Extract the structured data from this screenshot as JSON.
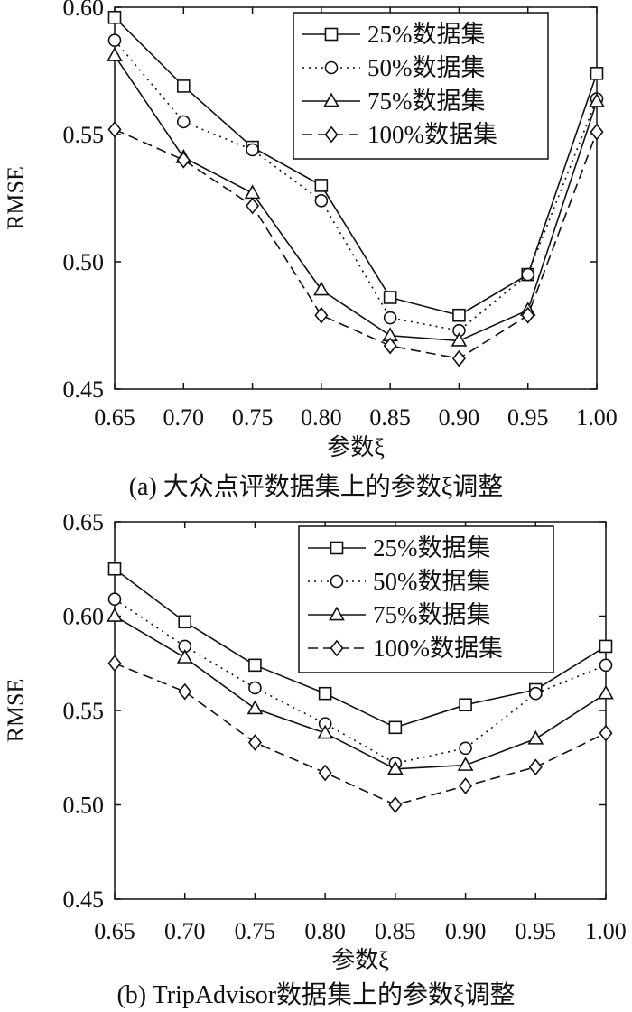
{
  "chart_data": [
    {
      "type": "line",
      "caption": "(a) 大众点评数据集上的参数ξ调整",
      "xlabel": "参数ξ",
      "ylabel": "RMSE",
      "x": [
        0.65,
        0.7,
        0.75,
        0.8,
        0.85,
        0.9,
        0.95,
        1.0
      ],
      "xticks": [
        "0.65",
        "0.70",
        "0.75",
        "0.80",
        "0.85",
        "0.90",
        "0.95",
        "1.00"
      ],
      "xlim": [
        0.65,
        1.0
      ],
      "ylim": [
        0.45,
        0.6
      ],
      "yticks": [
        "0.45",
        "0.50",
        "0.55",
        "0.60"
      ],
      "legend_position": "top-right",
      "grid": false,
      "series": [
        {
          "name": "25%数据集",
          "marker": "square",
          "dash": "solid",
          "values": [
            0.596,
            0.569,
            0.545,
            0.53,
            0.486,
            0.479,
            0.495,
            0.574
          ]
        },
        {
          "name": "50%数据集",
          "marker": "circle",
          "dash": "dotted",
          "values": [
            0.587,
            0.555,
            0.544,
            0.524,
            0.478,
            0.473,
            0.495,
            0.564
          ]
        },
        {
          "name": "75%数据集",
          "marker": "triangle",
          "dash": "solid",
          "values": [
            0.581,
            0.541,
            0.527,
            0.489,
            0.471,
            0.469,
            0.481,
            0.563
          ]
        },
        {
          "name": "100%数据集",
          "marker": "diamond",
          "dash": "dashed",
          "values": [
            0.552,
            0.54,
            0.522,
            0.479,
            0.467,
            0.462,
            0.479,
            0.551
          ]
        }
      ]
    },
    {
      "type": "line",
      "caption": "(b) TripAdvisor数据集上的参数ξ调整",
      "xlabel": "参数ξ",
      "ylabel": "RMSE",
      "x": [
        0.65,
        0.7,
        0.75,
        0.8,
        0.85,
        0.9,
        0.95,
        1.0
      ],
      "xticks": [
        "0.65",
        "0.70",
        "0.75",
        "0.80",
        "0.85",
        "0.90",
        "0.95",
        "1.00"
      ],
      "xlim": [
        0.65,
        1.0
      ],
      "ylim": [
        0.45,
        0.65
      ],
      "yticks": [
        "0.45",
        "0.50",
        "0.55",
        "0.60",
        "0.65"
      ],
      "legend_position": "top-right",
      "grid": false,
      "series": [
        {
          "name": "25%数据集",
          "marker": "square",
          "dash": "solid",
          "values": [
            0.625,
            0.597,
            0.574,
            0.559,
            0.541,
            0.553,
            0.561,
            0.584
          ]
        },
        {
          "name": "50%数据集",
          "marker": "circle",
          "dash": "dotted",
          "values": [
            0.609,
            0.584,
            0.562,
            0.543,
            0.522,
            0.53,
            0.559,
            0.574
          ]
        },
        {
          "name": "75%数据集",
          "marker": "triangle",
          "dash": "solid",
          "values": [
            0.6,
            0.578,
            0.551,
            0.538,
            0.519,
            0.521,
            0.535,
            0.559
          ]
        },
        {
          "name": "100%数据集",
          "marker": "diamond",
          "dash": "dashed",
          "values": [
            0.575,
            0.56,
            0.533,
            0.517,
            0.5,
            0.51,
            0.52,
            0.538
          ]
        }
      ]
    }
  ]
}
